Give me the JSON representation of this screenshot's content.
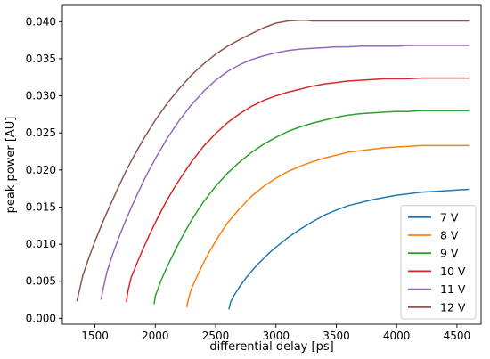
{
  "chart_data": {
    "type": "line",
    "title": "",
    "xlabel": "differential delay [ps]",
    "ylabel": "peak power [AU]",
    "xlim": [
      1230,
      4700
    ],
    "ylim": [
      -0.0008,
      0.0422
    ],
    "xticks": [
      1500,
      2000,
      2500,
      3000,
      3500,
      4000,
      4500
    ],
    "xtick_labels": [
      "1500",
      "2000",
      "2500",
      "3000",
      "3500",
      "4000",
      "4500"
    ],
    "yticks": [
      0.0,
      0.005,
      0.01,
      0.015,
      0.02,
      0.025,
      0.03,
      0.035,
      0.04
    ],
    "ytick_labels": [
      "0.000",
      "0.005",
      "0.010",
      "0.015",
      "0.020",
      "0.025",
      "0.030",
      "0.035",
      "0.040"
    ],
    "grid": false,
    "legend_position": "lower-right",
    "series": [
      {
        "name": "7 V",
        "color": "#1f77b4",
        "x": [
          2610,
          2625,
          2650,
          2700,
          2750,
          2800,
          2850,
          2900,
          2950,
          3000,
          3100,
          3200,
          3300,
          3400,
          3500,
          3600,
          3700,
          3800,
          3900,
          4000,
          4100,
          4200,
          4300,
          4400,
          4500,
          4600
        ],
        "y": [
          0.0012,
          0.0022,
          0.003,
          0.0043,
          0.0054,
          0.0064,
          0.0073,
          0.0081,
          0.0089,
          0.0096,
          0.0109,
          0.012,
          0.013,
          0.0139,
          0.0146,
          0.0152,
          0.0156,
          0.016,
          0.0163,
          0.0166,
          0.0168,
          0.017,
          0.0171,
          0.0172,
          0.0173,
          0.0174
        ]
      },
      {
        "name": "8 V",
        "color": "#ff7f0e",
        "x": [
          2260,
          2275,
          2300,
          2350,
          2400,
          2450,
          2500,
          2550,
          2600,
          2700,
          2800,
          2900,
          3000,
          3100,
          3200,
          3300,
          3400,
          3500,
          3600,
          3700,
          3800,
          3900,
          4000,
          4100,
          4200,
          4300,
          4400,
          4500,
          4600
        ],
        "y": [
          0.0015,
          0.0026,
          0.004,
          0.0058,
          0.0075,
          0.009,
          0.0104,
          0.0117,
          0.0129,
          0.0148,
          0.0165,
          0.0178,
          0.0189,
          0.0198,
          0.0205,
          0.0211,
          0.0216,
          0.022,
          0.0224,
          0.0226,
          0.0228,
          0.023,
          0.0231,
          0.0232,
          0.0233,
          0.0233,
          0.0233,
          0.0233,
          0.0233
        ]
      },
      {
        "name": "9 V",
        "color": "#2ca02c",
        "x": [
          1990,
          2000,
          2050,
          2100,
          2150,
          2200,
          2250,
          2300,
          2350,
          2400,
          2500,
          2600,
          2700,
          2800,
          2900,
          3000,
          3100,
          3200,
          3300,
          3400,
          3500,
          3600,
          3700,
          3800,
          3900,
          4000,
          4100,
          4200,
          4300,
          4400,
          4500,
          4600
        ],
        "y": [
          0.0019,
          0.003,
          0.0052,
          0.007,
          0.0087,
          0.0103,
          0.0118,
          0.0132,
          0.0145,
          0.0157,
          0.0178,
          0.0196,
          0.0211,
          0.0224,
          0.0235,
          0.0244,
          0.0252,
          0.0258,
          0.0263,
          0.0267,
          0.0271,
          0.0274,
          0.0276,
          0.0277,
          0.0278,
          0.0279,
          0.0279,
          0.028,
          0.028,
          0.028,
          0.028,
          0.028
        ]
      },
      {
        "name": "10 V",
        "color": "#d62728",
        "x": [
          1760,
          1775,
          1800,
          1850,
          1900,
          1950,
          2000,
          2050,
          2100,
          2150,
          2200,
          2300,
          2400,
          2500,
          2600,
          2700,
          2800,
          2900,
          3000,
          3100,
          3200,
          3300,
          3400,
          3500,
          3600,
          3700,
          3800,
          3900,
          4000,
          4100,
          4200,
          4300,
          4400,
          4500,
          4600
        ],
        "y": [
          0.0022,
          0.0038,
          0.0055,
          0.0075,
          0.0094,
          0.0112,
          0.0129,
          0.0145,
          0.016,
          0.0174,
          0.0187,
          0.0211,
          0.0232,
          0.0249,
          0.0264,
          0.0276,
          0.0286,
          0.0294,
          0.03,
          0.0305,
          0.0309,
          0.0313,
          0.0316,
          0.0318,
          0.032,
          0.0321,
          0.0322,
          0.0323,
          0.0323,
          0.0323,
          0.0324,
          0.0324,
          0.0324,
          0.0324,
          0.0324
        ]
      },
      {
        "name": "11 V",
        "color": "#9467bd",
        "x": [
          1550,
          1575,
          1600,
          1650,
          1700,
          1750,
          1800,
          1850,
          1900,
          1950,
          2000,
          2100,
          2200,
          2300,
          2400,
          2500,
          2600,
          2700,
          2800,
          2900,
          3000,
          3100,
          3200,
          3300,
          3400,
          3500,
          3600,
          3700,
          3800,
          3900,
          4000,
          4100,
          4200,
          4300,
          4400,
          4500,
          4600
        ],
        "y": [
          0.0025,
          0.0045,
          0.0063,
          0.0088,
          0.011,
          0.013,
          0.0149,
          0.0167,
          0.0184,
          0.02,
          0.0215,
          0.0243,
          0.0267,
          0.0288,
          0.0306,
          0.0321,
          0.0333,
          0.0342,
          0.0349,
          0.0354,
          0.0358,
          0.0361,
          0.0363,
          0.0364,
          0.0365,
          0.0366,
          0.0366,
          0.0367,
          0.0367,
          0.0367,
          0.0367,
          0.0368,
          0.0368,
          0.0368,
          0.0368,
          0.0368,
          0.0368
        ]
      },
      {
        "name": "12 V",
        "color": "#8c564b",
        "x": [
          1350,
          1375,
          1400,
          1450,
          1500,
          1550,
          1600,
          1650,
          1700,
          1750,
          1800,
          1900,
          2000,
          2100,
          2200,
          2300,
          2400,
          2500,
          2600,
          2700,
          2800,
          2900,
          3000,
          3100,
          3200,
          3250,
          3300,
          3400,
          3500,
          3600,
          3700,
          3800,
          3900,
          4000,
          4100,
          4200,
          4300,
          4400,
          4500,
          4600
        ],
        "y": [
          0.0023,
          0.004,
          0.0058,
          0.0082,
          0.0104,
          0.0124,
          0.0143,
          0.0161,
          0.0179,
          0.0196,
          0.0212,
          0.0241,
          0.0267,
          0.029,
          0.031,
          0.0328,
          0.0343,
          0.0356,
          0.0367,
          0.0376,
          0.0384,
          0.0392,
          0.0398,
          0.0401,
          0.0402,
          0.0402,
          0.0401,
          0.0401,
          0.0401,
          0.0401,
          0.0401,
          0.0401,
          0.0401,
          0.0401,
          0.0401,
          0.0401,
          0.0401,
          0.0401,
          0.0401,
          0.0401
        ]
      }
    ]
  }
}
